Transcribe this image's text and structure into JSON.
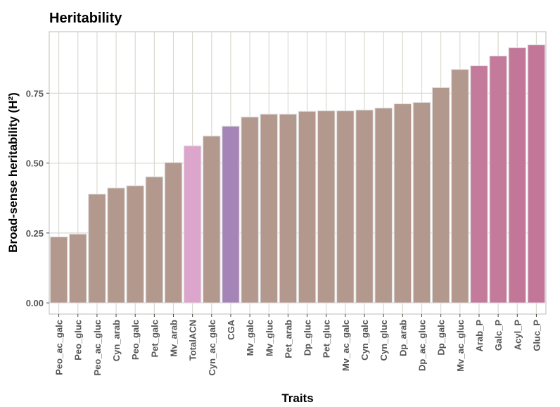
{
  "chart_data": {
    "type": "bar",
    "title": "Heritability",
    "x_label": "Traits",
    "y_label": "Broad-sense heritability (H²)",
    "categories": [
      "Peo_ac_galc",
      "Peo_gluc",
      "Peo_ac_gluc",
      "Cyn_arab",
      "Peo_galc",
      "Pet_galc",
      "Mv_arab",
      "TotalACN",
      "Cyn_ac_galc",
      "CGA",
      "Mv_galc",
      "Mv_gluc",
      "Pet_arab",
      "Dp_gluc",
      "Pet_gluc",
      "Mv_ac_galc",
      "Cyn_galc",
      "Cyn_gluc",
      "Dp_arab",
      "Dp_ac_gluc",
      "Dp_galc",
      "Mv_ac_gluc",
      "Arab_P",
      "Galc_P",
      "Acyl_P",
      "Gluc_P"
    ],
    "values": [
      0.236,
      0.246,
      0.389,
      0.411,
      0.419,
      0.451,
      0.502,
      0.562,
      0.597,
      0.632,
      0.665,
      0.675,
      0.675,
      0.685,
      0.687,
      0.687,
      0.69,
      0.697,
      0.712,
      0.717,
      0.77,
      0.835,
      0.848,
      0.883,
      0.913,
      0.923
    ],
    "colors": [
      "#b3988e",
      "#b3988e",
      "#b3988e",
      "#b3988e",
      "#b3988e",
      "#b3988e",
      "#b3988e",
      "#dca6cc",
      "#b3988e",
      "#a585b8",
      "#b3988e",
      "#b3988e",
      "#b3988e",
      "#b3988e",
      "#b3988e",
      "#b3988e",
      "#b3988e",
      "#b3988e",
      "#b3988e",
      "#b3988e",
      "#b3988e",
      "#b3988e",
      "#c47a9b",
      "#c47a9b",
      "#c27799",
      "#c27799"
    ],
    "ylim": [
      -0.04,
      0.97
    ],
    "yticks": [
      {
        "value": 0,
        "label": "0.00"
      },
      0.25,
      {
        "value": 0.5,
        "label": "0.50"
      },
      0.75
    ],
    "grid": true
  }
}
